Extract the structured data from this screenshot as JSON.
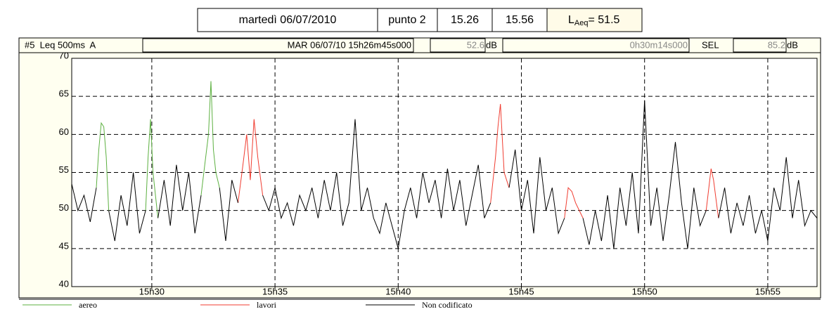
{
  "header": {
    "date": "martedì 06/07/2010",
    "point": "punto 2",
    "start": "15.26",
    "end": "15.56",
    "laeq_symbol": "L",
    "laeq_sub": "Aeq",
    "laeq_value": "= 51.5"
  },
  "info": {
    "channel": "#5  Leq 500ms  A",
    "timestamp": "MAR 06/07/10 15h26m45s000",
    "leq": 52.6,
    "leq_unit": "dB",
    "duration": "0h30m14s000",
    "sel_label": "SEL",
    "sel": 85.2,
    "sel_unit": "dB"
  },
  "chart_data": {
    "type": "line",
    "xlim": [
      26.75,
      57.0
    ],
    "xticks": [
      {
        "value": 30,
        "label": "15h30"
      },
      {
        "value": 35,
        "label": "15h35"
      },
      {
        "value": 40,
        "label": "15h40"
      },
      {
        "value": 45,
        "label": "15h45"
      },
      {
        "value": 50,
        "label": "15h50"
      },
      {
        "value": 55,
        "label": "15h55"
      }
    ],
    "ylim": [
      40,
      70
    ],
    "yticks": [
      40,
      45,
      50,
      55,
      60,
      65,
      70
    ],
    "grid": true,
    "series": [
      {
        "name": "aereo",
        "color": "#5cb040",
        "x": [
          27.75,
          27.85,
          27.95,
          28.05,
          28.15,
          28.25,
          null,
          29.75,
          29.85,
          29.95,
          30.05,
          30.25,
          null,
          32.0,
          32.15,
          32.3,
          32.4,
          32.5,
          32.6,
          32.75
        ],
        "values": [
          53,
          58,
          61.5,
          61,
          57,
          50,
          null,
          50,
          57,
          62,
          55,
          49,
          null,
          52,
          56,
          60,
          67,
          58,
          55,
          53
        ]
      },
      {
        "name": "lavori",
        "color": "#f03c30",
        "x": [
          33.5,
          33.7,
          33.85,
          34.0,
          34.15,
          34.3,
          34.5,
          null,
          43.75,
          43.95,
          44.05,
          44.15,
          44.3,
          44.5,
          null,
          46.75,
          46.9,
          47.05,
          47.2,
          47.5,
          null,
          52.5,
          52.7,
          52.8,
          53.0
        ],
        "values": [
          51,
          56,
          60,
          54,
          62,
          57,
          52,
          null,
          51,
          57,
          61,
          64,
          55,
          53,
          null,
          49,
          53,
          52.5,
          51,
          49,
          null,
          50,
          55.5,
          54,
          49
        ]
      },
      {
        "name": "Non codificato",
        "color": "#000000",
        "x": [
          26.75,
          27.0,
          27.25,
          27.5,
          27.75,
          28.0,
          28.25,
          28.5,
          28.75,
          29.0,
          29.25,
          29.5,
          29.75,
          30.0,
          30.25,
          30.5,
          30.75,
          31.0,
          31.25,
          31.5,
          31.75,
          32.0,
          32.25,
          32.5,
          32.75,
          33.0,
          33.25,
          33.5,
          33.75,
          34.0,
          34.25,
          34.5,
          34.75,
          35.0,
          35.25,
          35.5,
          35.75,
          36.0,
          36.25,
          36.5,
          36.75,
          37.0,
          37.25,
          37.5,
          37.75,
          38.0,
          38.25,
          38.5,
          38.75,
          39.0,
          39.25,
          39.5,
          39.75,
          40.0,
          40.25,
          40.5,
          40.75,
          41.0,
          41.25,
          41.5,
          41.75,
          42.0,
          42.25,
          42.5,
          42.75,
          43.0,
          43.25,
          43.5,
          43.75,
          44.0,
          44.25,
          44.5,
          44.75,
          45.0,
          45.25,
          45.5,
          45.75,
          46.0,
          46.25,
          46.5,
          46.75,
          47.0,
          47.25,
          47.5,
          47.75,
          48.0,
          48.25,
          48.5,
          48.75,
          49.0,
          49.25,
          49.5,
          49.75,
          50.0,
          50.25,
          50.5,
          50.75,
          51.0,
          51.25,
          51.5,
          51.75,
          52.0,
          52.25,
          52.5,
          52.75,
          53.0,
          53.25,
          53.5,
          53.75,
          54.0,
          54.25,
          54.5,
          54.75,
          55.0,
          55.25,
          55.5,
          55.75,
          56.0,
          56.25,
          56.5,
          56.75,
          57.0
        ],
        "values": [
          53.5,
          50,
          52,
          48.5,
          53,
          null,
          50,
          46,
          52,
          48,
          55,
          47,
          50,
          null,
          49,
          54,
          48,
          56,
          50,
          55,
          47,
          52,
          null,
          null,
          53,
          46,
          54,
          51,
          null,
          null,
          null,
          52,
          50,
          53,
          49,
          51,
          48,
          52,
          50,
          53,
          49,
          54,
          50,
          55,
          48,
          51,
          62,
          50,
          53,
          49,
          47,
          51,
          48,
          45,
          50,
          53,
          49,
          55,
          51,
          54,
          49,
          55.5,
          50,
          54,
          48,
          52,
          56,
          49,
          51,
          null,
          null,
          53,
          58,
          50,
          54,
          47,
          57,
          50,
          53,
          47,
          49,
          null,
          null,
          49,
          45.5,
          50,
          46,
          52,
          45,
          53,
          48,
          55,
          47,
          64.5,
          48,
          53,
          46,
          52,
          59,
          51,
          45,
          53,
          48,
          50,
          null,
          49,
          53,
          47,
          51,
          48,
          52,
          47,
          50,
          46,
          53,
          50,
          57,
          49,
          54,
          48,
          50,
          49
        ]
      }
    ]
  }
}
